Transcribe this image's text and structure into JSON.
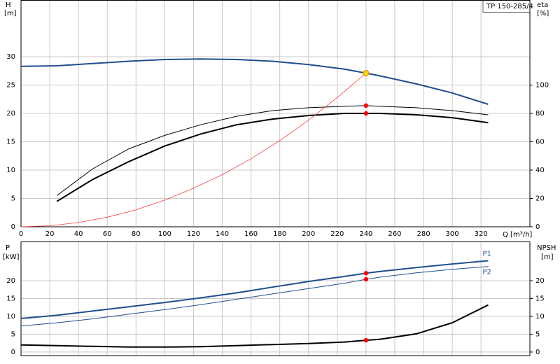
{
  "chart_data": [
    {
      "type": "line",
      "title": "TP 150-285/4",
      "ylabel": "H",
      "yunit": "[m]",
      "y2label": "eta",
      "y2unit": "[%]",
      "xlabel": "Q [m³/h]",
      "xlim": [
        0,
        354
      ],
      "xticks": [
        0,
        20,
        40,
        60,
        80,
        100,
        120,
        140,
        160,
        180,
        200,
        220,
        240,
        260,
        280,
        300,
        320
      ],
      "ylim": [
        0,
        40
      ],
      "yticks": [
        0,
        5,
        10,
        15,
        20,
        25,
        30
      ],
      "y2lim": [
        0,
        160
      ],
      "y2ticks": [
        0,
        20,
        40,
        60,
        80,
        100
      ],
      "grid": true,
      "series": [
        {
          "color": "#1f4f8f",
          "line_width": 2,
          "axis": "y",
          "x": [
            0,
            25,
            50,
            75,
            100,
            125,
            150,
            175,
            200,
            225,
            240,
            250,
            275,
            300,
            325
          ],
          "values": [
            28.3,
            28.4,
            28.8,
            29.2,
            29.5,
            29.6,
            29.5,
            29.2,
            28.6,
            27.8,
            27.1,
            26.6,
            25.2,
            23.6,
            21.6
          ]
        },
        {
          "color": "#000000",
          "line_width": 1,
          "axis": "y2",
          "x": [
            25,
            50,
            75,
            100,
            125,
            150,
            175,
            200,
            225,
            240,
            250,
            275,
            300,
            325
          ],
          "values": [
            22,
            41,
            55,
            64.5,
            72,
            78,
            82,
            84,
            85,
            85.5,
            85,
            84,
            82,
            79
          ]
        },
        {
          "color": "#000000",
          "line_width": 2,
          "axis": "y2",
          "x": [
            25,
            50,
            75,
            100,
            125,
            150,
            175,
            200,
            225,
            240,
            250,
            275,
            300,
            325
          ],
          "values": [
            18,
            33.5,
            46,
            57,
            65.5,
            72,
            76,
            78.5,
            80,
            80,
            80,
            79,
            77,
            73.5
          ]
        },
        {
          "color": "#ff3b3b",
          "line_width": 0.8,
          "axis": "y",
          "x": [
            0,
            20,
            40,
            60,
            80,
            100,
            120,
            140,
            160,
            180,
            200,
            220,
            240
          ],
          "values": [
            0,
            0.19,
            0.75,
            1.69,
            3.0,
            4.7,
            6.8,
            9.2,
            12.0,
            15.2,
            18.8,
            22.8,
            27.1
          ]
        },
        {
          "color": "#ffd400",
          "marker": "circle",
          "axis": "y",
          "x": [
            240
          ],
          "values": [
            27.1
          ]
        },
        {
          "color": "#ff0000",
          "marker": "circle",
          "axis": "y2",
          "x": [
            240,
            240
          ],
          "values": [
            85.5,
            80
          ]
        }
      ]
    },
    {
      "type": "line",
      "ylabel": "P",
      "yunit": "[kW]",
      "y2label": "NPSH",
      "y2unit": "[m]",
      "xlim": [
        0,
        354
      ],
      "xticks": [
        0,
        20,
        40,
        60,
        80,
        100,
        120,
        140,
        160,
        180,
        200,
        220,
        240,
        260,
        280,
        300,
        320
      ],
      "ylim": [
        -1,
        31
      ],
      "yticks": [
        0,
        5,
        10,
        15,
        20
      ],
      "y2lim": [
        -1,
        31
      ],
      "y2ticks": [
        0,
        5,
        10,
        15,
        20
      ],
      "grid": true,
      "series": [
        {
          "name": "P1",
          "color": "#1f4f8f",
          "line_width": 2,
          "axis": "y",
          "x": [
            0,
            25,
            50,
            75,
            100,
            125,
            150,
            175,
            200,
            225,
            240,
            250,
            275,
            300,
            325
          ],
          "values": [
            9.4,
            10.3,
            11.5,
            12.7,
            13.9,
            15.2,
            16.6,
            18.2,
            19.8,
            21.2,
            22.1,
            22.6,
            23.7,
            24.7,
            25.6
          ]
        },
        {
          "name": "P2",
          "color": "#1f4f8f",
          "line_width": 1,
          "axis": "y",
          "x": [
            0,
            25,
            50,
            75,
            100,
            125,
            150,
            175,
            200,
            225,
            240,
            250,
            275,
            300,
            325
          ],
          "values": [
            7.3,
            8.2,
            9.3,
            10.6,
            11.9,
            13.3,
            14.8,
            16.3,
            17.8,
            19.3,
            20.4,
            21.0,
            22.2,
            23.2,
            24.0
          ]
        },
        {
          "color": "#000000",
          "line_width": 2,
          "axis": "y2",
          "x": [
            0,
            25,
            50,
            75,
            100,
            125,
            150,
            175,
            200,
            225,
            240,
            250,
            275,
            300,
            325
          ],
          "values": [
            2.0,
            1.8,
            1.6,
            1.4,
            1.4,
            1.5,
            1.8,
            2.1,
            2.4,
            2.8,
            3.3,
            3.6,
            5.1,
            8.2,
            13.2
          ]
        },
        {
          "color": "#ff0000",
          "marker": "circle",
          "axis": "y",
          "x": [
            240,
            240
          ],
          "values": [
            22.1,
            20.4
          ]
        },
        {
          "color": "#ff0000",
          "marker": "circle",
          "axis": "y2",
          "x": [
            240
          ],
          "values": [
            3.3
          ]
        }
      ]
    }
  ]
}
